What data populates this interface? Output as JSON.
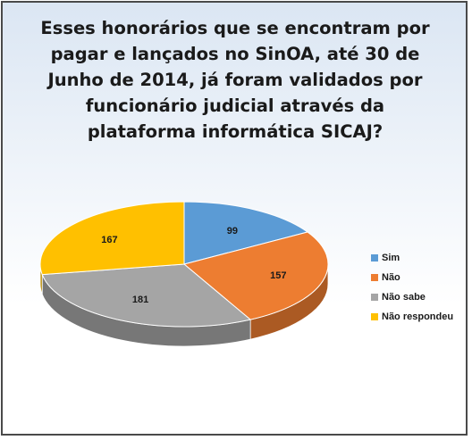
{
  "chart_data": {
    "type": "pie",
    "title": "Esses honorários que se encontram por pagar e lançados no SinOA, até 30 de Junho de 2014, já foram validados por funcionário judicial através da plataforma informática SICAJ?",
    "categories": [
      "Sim",
      "Não",
      "Não sabe",
      "Não respondeu"
    ],
    "values": [
      99,
      157,
      181,
      167
    ],
    "colors": [
      "#5b9bd5",
      "#ed7d31",
      "#a5a5a5",
      "#ffc000"
    ],
    "data_labels": [
      "99",
      "157",
      "181",
      "167"
    ],
    "legend_position": "right",
    "style": "3d"
  }
}
